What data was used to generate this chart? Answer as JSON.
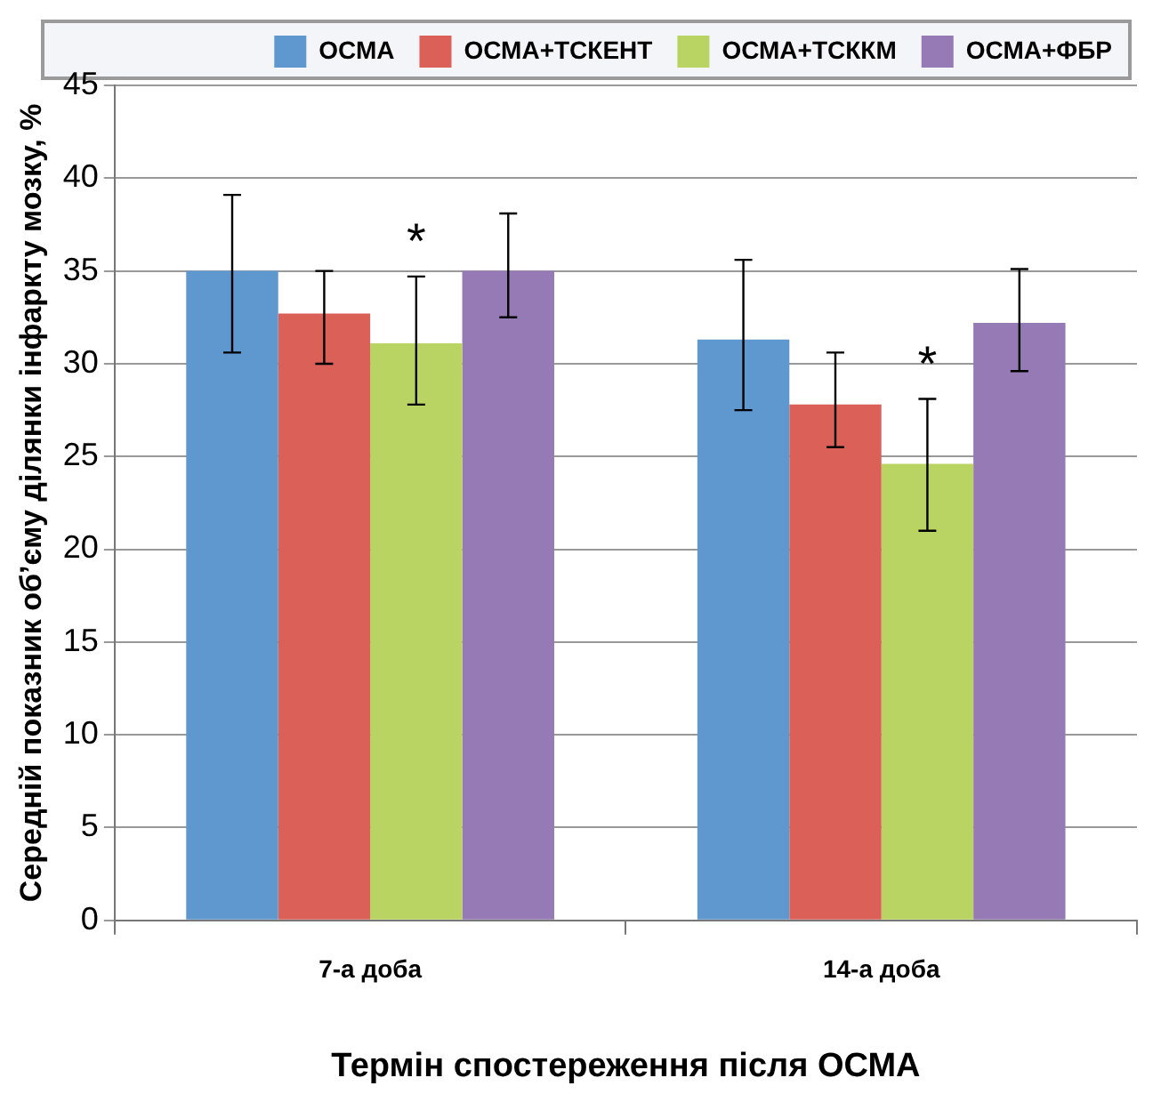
{
  "chart_data": {
    "type": "bar",
    "xlabel": "Термін спостереження після ОСМА",
    "ylabel": "Середній показник об’єму ділянки інфаркту мозку, %",
    "categories": [
      "7-а доба",
      "14-а доба"
    ],
    "series": [
      {
        "name": "ОСМА",
        "color": "#5f97cf",
        "values": [
          35.0,
          31.3
        ],
        "errors": [
          [
            30.6,
            39.1
          ],
          [
            27.5,
            35.6
          ]
        ]
      },
      {
        "name": "ОСМА+ТСКЕНТ",
        "color": "#da6058",
        "values": [
          32.7,
          27.8
        ],
        "errors": [
          [
            30.0,
            35.0
          ],
          [
            25.5,
            30.6
          ]
        ]
      },
      {
        "name": "ОСМА+ТСККМ",
        "color": "#bad464",
        "values": [
          31.1,
          24.6
        ],
        "errors": [
          [
            27.8,
            34.7
          ],
          [
            21.0,
            28.1
          ]
        ]
      },
      {
        "name": "ОСМА+ФБР",
        "color": "#967ab5",
        "values": [
          35.0,
          32.2
        ],
        "errors": [
          [
            32.5,
            38.1
          ],
          [
            29.6,
            35.1
          ]
        ]
      }
    ],
    "annotations": [
      "*",
      "*"
    ],
    "ylim": [
      0,
      45
    ],
    "yticks": [
      0,
      5,
      10,
      15,
      20,
      25,
      30,
      35,
      40,
      45
    ],
    "grid": "y",
    "legend": "top"
  }
}
